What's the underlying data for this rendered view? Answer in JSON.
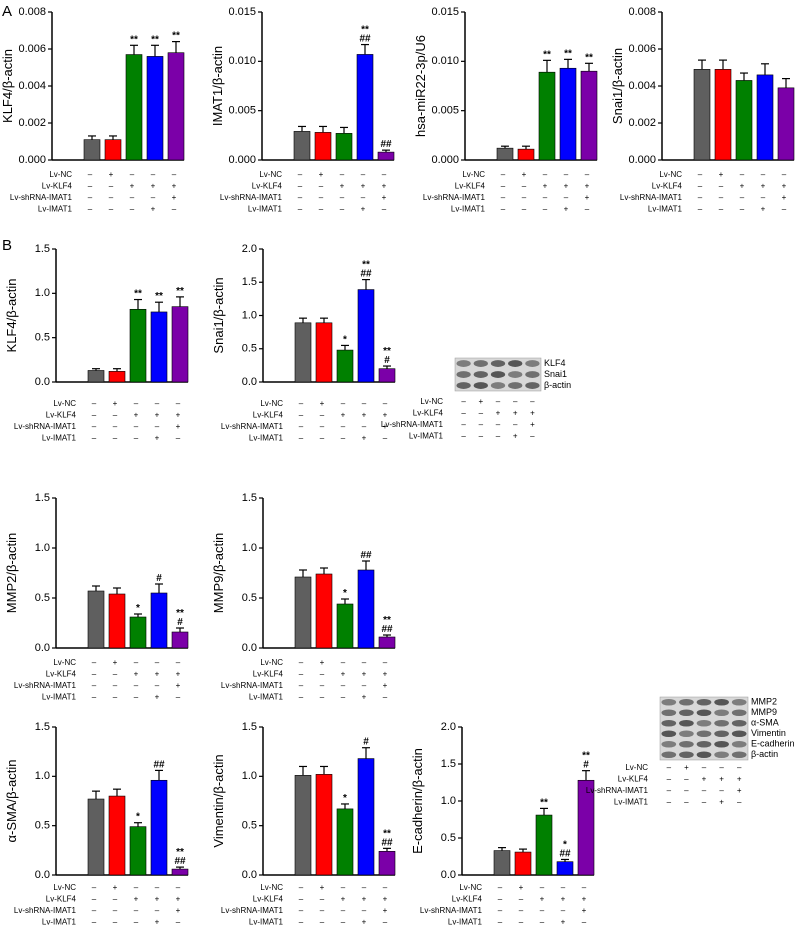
{
  "panels": [
    "A",
    "B"
  ],
  "colors": [
    "#5f5f5f",
    "#ff0000",
    "#008000",
    "#0000ff",
    "#7b00a8"
  ],
  "conditions": {
    "rows": [
      "Lv-NC",
      "Lv-KLF4",
      "Lv-shRNA-IMAT1",
      "Lv-IMAT1"
    ],
    "signs": [
      [
        "–",
        "+",
        "–",
        "–",
        "–"
      ],
      [
        "–",
        "–",
        "+",
        "+",
        "+"
      ],
      [
        "–",
        "–",
        "–",
        "–",
        "+"
      ],
      [
        "–",
        "–",
        "–",
        "+",
        "–"
      ]
    ]
  },
  "blots": [
    {
      "labels": [
        "KLF4",
        "Snai1",
        "β-actin"
      ]
    },
    {
      "labels": [
        "MMP2",
        "MMP9",
        "α-SMA",
        "Vimentin",
        "E-cadherin",
        "β-actin"
      ]
    }
  ],
  "chart_data": [
    {
      "type": "bar",
      "ylabel": "KLF4/β-actin",
      "values": [
        0.0011,
        0.0011,
        0.0057,
        0.0056,
        0.0058
      ],
      "errors": [
        0.0002,
        0.0002,
        0.0005,
        0.0006,
        0.0006
      ],
      "annotations": [
        null,
        null,
        [
          "**"
        ],
        [
          "**"
        ],
        [
          "**"
        ]
      ],
      "ylim": [
        0,
        0.008
      ],
      "yticks": [
        {
          "value": 0,
          "label": "0.000"
        },
        0.002,
        0.004,
        0.006,
        0.008
      ]
    },
    {
      "type": "bar",
      "ylabel": "IMAT1/β-actin",
      "values": [
        0.0029,
        0.0028,
        0.0027,
        0.0107,
        0.0008
      ],
      "errors": [
        0.0005,
        0.0006,
        0.0006,
        0.001,
        0.0002
      ],
      "annotations": [
        null,
        null,
        null,
        [
          "**",
          "##"
        ],
        [
          "##"
        ]
      ],
      "ylim": [
        0,
        0.015
      ],
      "yticks": [
        {
          "value": 0,
          "label": "0.000"
        },
        0.005,
        {
          "value": 0.01,
          "label": "0.010"
        },
        0.015
      ]
    },
    {
      "type": "bar",
      "ylabel": "hsa-miR22-3p/U6",
      "values": [
        0.0012,
        0.0011,
        0.0089,
        0.0093,
        0.009
      ],
      "errors": [
        0.0002,
        0.0003,
        0.0012,
        0.0009,
        0.0008
      ],
      "annotations": [
        null,
        null,
        [
          "**"
        ],
        [
          "**"
        ],
        [
          "**"
        ]
      ],
      "ylim": [
        0,
        0.015
      ],
      "yticks": [
        {
          "value": 0,
          "label": "0.000"
        },
        0.005,
        {
          "value": 0.01,
          "label": "0.010"
        },
        0.015
      ]
    },
    {
      "type": "bar",
      "ylabel": "Snai1/β-actin",
      "values": [
        0.0049,
        0.0049,
        0.0043,
        0.0046,
        0.0039
      ],
      "errors": [
        0.0005,
        0.0005,
        0.0004,
        0.0006,
        0.0005
      ],
      "annotations": [
        null,
        null,
        null,
        null,
        null
      ],
      "ylim": [
        0,
        0.008
      ],
      "yticks": [
        {
          "value": 0,
          "label": "0.000"
        },
        0.002,
        0.004,
        0.006,
        0.008
      ]
    },
    {
      "type": "bar",
      "ylabel": "KLF4/β-actin",
      "values": [
        0.13,
        0.12,
        0.82,
        0.79,
        0.85
      ],
      "errors": [
        0.02,
        0.03,
        0.11,
        0.11,
        0.11
      ],
      "annotations": [
        null,
        null,
        [
          "**"
        ],
        [
          "**"
        ],
        [
          "**"
        ]
      ],
      "ylim": [
        0,
        1.5
      ],
      "yticks": [
        {
          "value": 0,
          "label": "0.0"
        },
        0.5,
        {
          "value": 1,
          "label": "1.0"
        },
        1.5
      ]
    },
    {
      "type": "bar",
      "ylabel": "Snai1/β-actin",
      "values": [
        0.89,
        0.89,
        0.48,
        1.39,
        0.2
      ],
      "errors": [
        0.07,
        0.07,
        0.07,
        0.15,
        0.04
      ],
      "annotations": [
        null,
        null,
        [
          "*"
        ],
        [
          "**",
          "##"
        ],
        [
          "**",
          "#"
        ]
      ],
      "ylim": [
        0,
        2
      ],
      "yticks": [
        {
          "value": 0,
          "label": "0.0"
        },
        0.5,
        {
          "value": 1,
          "label": "1.0"
        },
        1.5,
        {
          "value": 2,
          "label": "2.0"
        }
      ]
    },
    {
      "type": "bar",
      "ylabel": "MMP2/β-actin",
      "values": [
        0.57,
        0.54,
        0.31,
        0.55,
        0.16
      ],
      "errors": [
        0.05,
        0.06,
        0.03,
        0.09,
        0.04
      ],
      "annotations": [
        null,
        null,
        [
          "*"
        ],
        [
          "#"
        ],
        [
          "**",
          "#"
        ]
      ],
      "ylim": [
        0,
        1.5
      ],
      "yticks": [
        {
          "value": 0,
          "label": "0.0"
        },
        0.5,
        {
          "value": 1,
          "label": "1.0"
        },
        1.5
      ]
    },
    {
      "type": "bar",
      "ylabel": "MMP9/β-actin",
      "values": [
        0.71,
        0.74,
        0.44,
        0.78,
        0.11
      ],
      "errors": [
        0.07,
        0.06,
        0.05,
        0.09,
        0.02
      ],
      "annotations": [
        null,
        null,
        [
          "*"
        ],
        [
          "##"
        ],
        [
          "**",
          "##"
        ]
      ],
      "ylim": [
        0,
        1.5
      ],
      "yticks": [
        {
          "value": 0,
          "label": "0.0"
        },
        0.5,
        {
          "value": 1,
          "label": "1.0"
        },
        1.5
      ]
    },
    {
      "type": "bar",
      "ylabel": "α-SMA/β-actin",
      "values": [
        0.77,
        0.8,
        0.49,
        0.96,
        0.06
      ],
      "errors": [
        0.08,
        0.07,
        0.04,
        0.1,
        0.02
      ],
      "annotations": [
        null,
        null,
        [
          "*"
        ],
        [
          "##"
        ],
        [
          "**",
          "##"
        ]
      ],
      "ylim": [
        0,
        1.5
      ],
      "yticks": [
        {
          "value": 0,
          "label": "0.0"
        },
        0.5,
        {
          "value": 1,
          "label": "1.0"
        },
        1.5
      ]
    },
    {
      "type": "bar",
      "ylabel": "Vimentin/β-actin",
      "values": [
        1.01,
        1.02,
        0.67,
        1.18,
        0.24
      ],
      "errors": [
        0.09,
        0.08,
        0.05,
        0.11,
        0.03
      ],
      "annotations": [
        null,
        null,
        [
          "*"
        ],
        [
          "#"
        ],
        [
          "**",
          "##"
        ]
      ],
      "ylim": [
        0,
        1.5
      ],
      "yticks": [
        {
          "value": 0,
          "label": "0.0"
        },
        0.5,
        {
          "value": 1,
          "label": "1.0"
        },
        1.5
      ]
    },
    {
      "type": "bar",
      "ylabel": "E-cadherin/β-actin",
      "values": [
        0.33,
        0.31,
        0.81,
        0.18,
        1.28
      ],
      "errors": [
        0.04,
        0.04,
        0.09,
        0.03,
        0.13
      ],
      "annotations": [
        null,
        null,
        [
          "**"
        ],
        [
          "*",
          "##"
        ],
        [
          "**",
          "#"
        ]
      ],
      "ylim": [
        0,
        2
      ],
      "yticks": [
        {
          "value": 0,
          "label": "0.0"
        },
        0.5,
        {
          "value": 1,
          "label": "1.0"
        },
        1.5,
        {
          "value": 2,
          "label": "2.0"
        }
      ]
    }
  ]
}
